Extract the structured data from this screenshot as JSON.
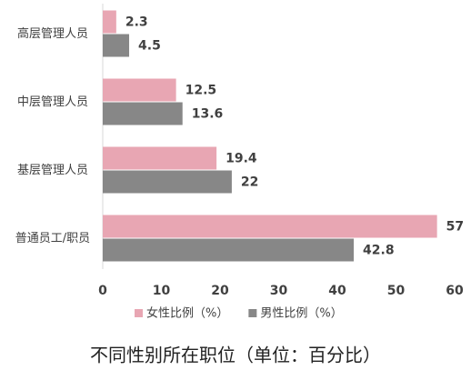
{
  "chart_data": {
    "type": "hbar",
    "title": "不同性别所在职位（单位：百分比）",
    "categories": [
      "高层管理人员",
      "中层管理人员",
      "基层管理人员",
      "普通员工/职员"
    ],
    "series": [
      {
        "name": "女性比例（%）",
        "color": "#e8a6b3",
        "values": [
          2.3,
          12.5,
          19.4,
          57
        ]
      },
      {
        "name": "男性比例（%）",
        "color": "#878787",
        "values": [
          4.5,
          13.6,
          22,
          42.8
        ]
      }
    ],
    "xlim": [
      0,
      60
    ],
    "xticks": [
      0,
      10,
      20,
      30,
      40,
      50,
      60
    ],
    "legend": "bottom"
  }
}
